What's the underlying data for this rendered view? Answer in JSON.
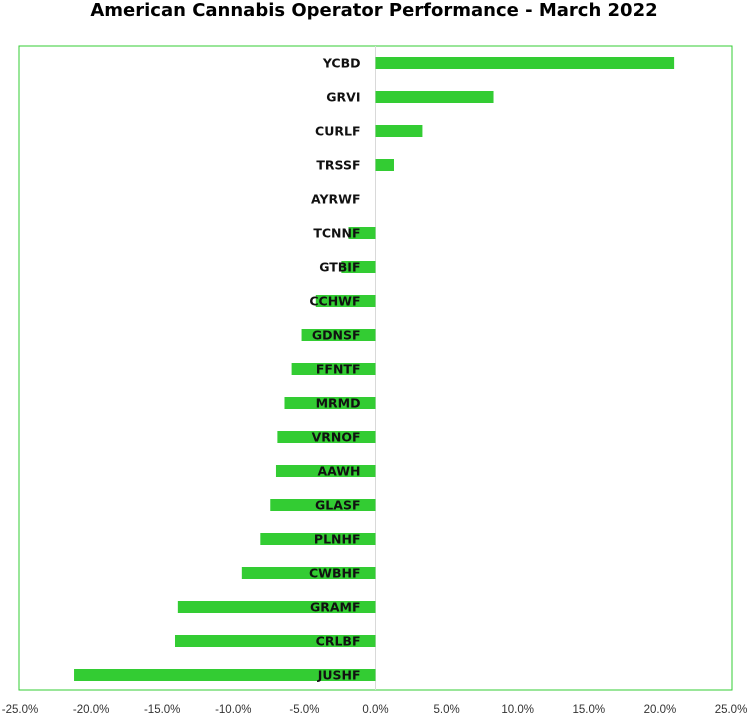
{
  "chart_data": {
    "type": "bar",
    "orientation": "horizontal",
    "title": "American Cannabis Operator Performance - March 2022",
    "xlabel": "",
    "ylabel": "",
    "xlim": [
      -25.0,
      25.0
    ],
    "x_ticks": [
      -25.0,
      -20.0,
      -15.0,
      -10.0,
      -5.0,
      0.0,
      5.0,
      10.0,
      15.0,
      20.0,
      25.0
    ],
    "x_tick_labels": [
      "-25.0%",
      "-20.0%",
      "-15.0%",
      "-10.0%",
      "-5.0%",
      "0.0%",
      "5.0%",
      "10.0%",
      "15.0%",
      "20.0%",
      "25.0%"
    ],
    "categories": [
      "YCBD",
      "GRVI",
      "CURLF",
      "TRSSF",
      "AYRWF",
      "TCNNF",
      "GTBIF",
      "CCHWF",
      "GDNSF",
      "FFNTF",
      "MRMD",
      "VRNOF",
      "AAWH",
      "GLASF",
      "PLNHF",
      "CWBHF",
      "GRAMF",
      "CRLBF",
      "JUSHF"
    ],
    "values": [
      21.0,
      8.3,
      3.3,
      1.3,
      0.0,
      -1.9,
      -2.4,
      -4.2,
      -5.2,
      -5.9,
      -6.4,
      -6.9,
      -7.0,
      -7.4,
      -8.1,
      -9.4,
      -13.9,
      -14.1,
      -21.2
    ],
    "units": "%",
    "bar_color": "#33cc33",
    "frame_color": "#33cc33",
    "grid": false,
    "legend": "none"
  }
}
